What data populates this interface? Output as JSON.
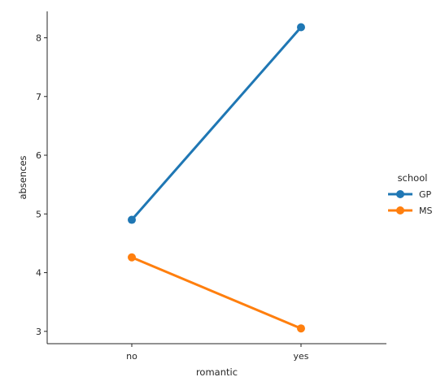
{
  "chart_data": {
    "type": "line",
    "title": "",
    "xlabel": "romantic",
    "ylabel": "absences",
    "categories": [
      "no",
      "yes"
    ],
    "ylim": [
      2.79,
      8.45
    ],
    "yticks": [
      3,
      4,
      5,
      6,
      7,
      8
    ],
    "grid": false,
    "legend": {
      "title": "school",
      "placement": "center-right"
    },
    "series": [
      {
        "name": "GP",
        "color": "#1f77b4",
        "values": [
          4.9,
          8.18
        ]
      },
      {
        "name": "MS",
        "color": "#ff7f0e",
        "values": [
          4.26,
          3.05
        ]
      }
    ]
  }
}
